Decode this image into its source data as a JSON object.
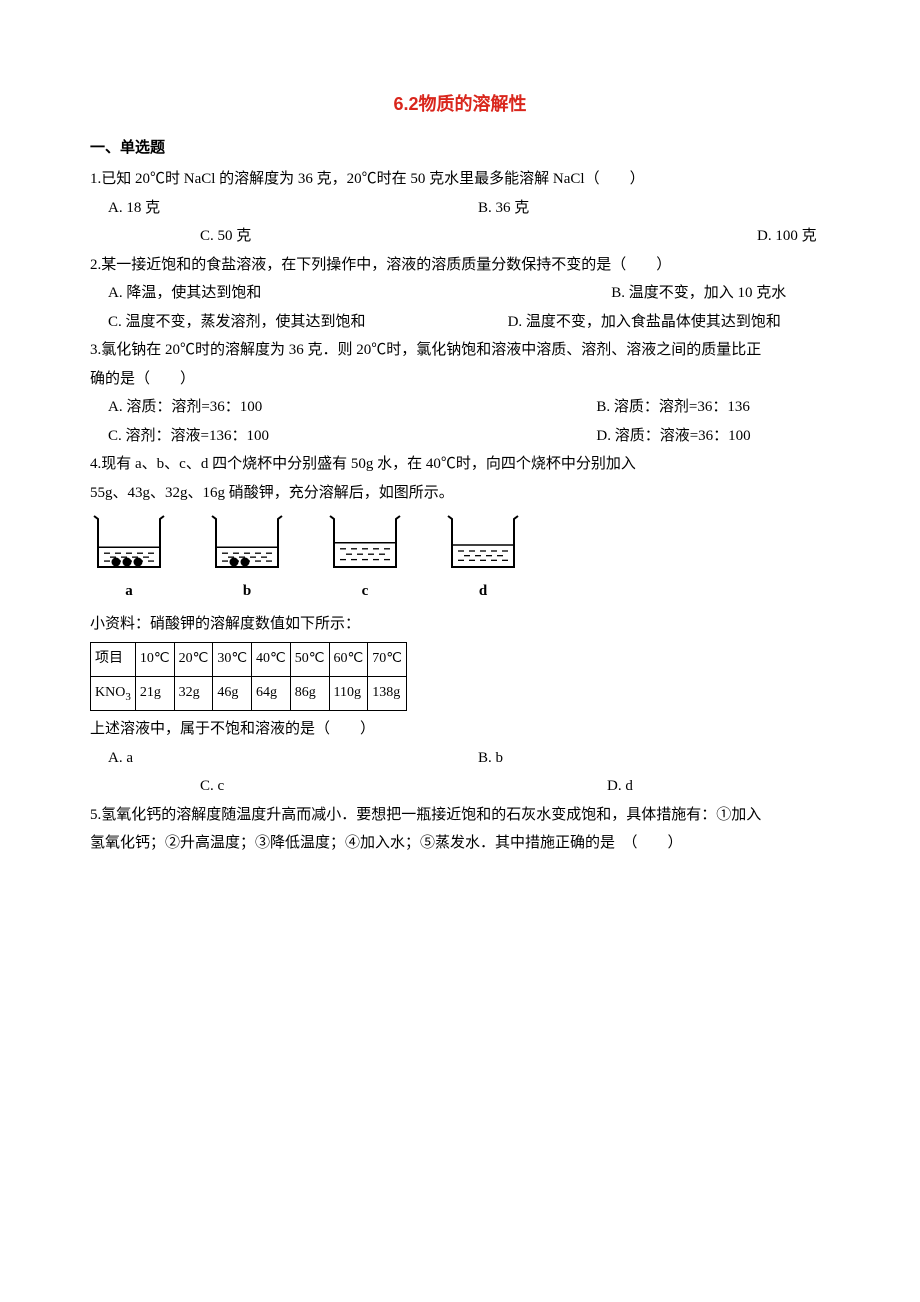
{
  "title_text": "6.2物质的溶解性",
  "title_color": "#d9261c",
  "section1": "一、单选题",
  "q1": {
    "text": "1.已知 20℃时 NaCl 的溶解度为 36 克，20℃时在 50 克水里最多能溶解 NaCl（　　）",
    "A": "A. 18 克",
    "B": "B. 36 克",
    "C": "C. 50 克",
    "D": "D. 100 克"
  },
  "q2": {
    "text": "2.某一接近饱和的食盐溶液，在下列操作中，溶液的溶质质量分数保持不变的是（　　）",
    "A": "A. 降温，使其达到饱和",
    "B": "B. 温度不变，加入 10 克水",
    "C": "C. 温度不变，蒸发溶剂，使其达到饱和",
    "D": "D. 温度不变，加入食盐晶体使其达到饱和"
  },
  "q3": {
    "text1": "3.氯化钠在 20℃时的溶解度为 36 克．则 20℃时，氯化钠饱和溶液中溶质、溶剂、溶液之间的质量比正",
    "text2": "确的是（　　）",
    "A": "A. 溶质：溶剂=36：100",
    "B": "B. 溶质：溶剂=36：136",
    "C": "C. 溶剂：溶液=136：100",
    "D": "D. 溶质：溶液=36：100"
  },
  "q4": {
    "text1": "4.现有 a、b、c、d 四个烧杯中分别盛有 50g 水，在 40℃时，向四个烧杯中分别加入",
    "text2": "55g、43g、32g、16g 硝酸钾，充分溶解后，如图所示。",
    "beakers": [
      {
        "label": "a",
        "balls": 3,
        "water_level": 0.45
      },
      {
        "label": "b",
        "balls": 2,
        "water_level": 0.45
      },
      {
        "label": "c",
        "balls": 0,
        "water_level": 0.55
      },
      {
        "label": "d",
        "balls": 0,
        "water_level": 0.5
      }
    ],
    "note": "小资料：硝酸钾的溶解度数值如下所示：",
    "table": {
      "row1": [
        "项目",
        "10℃",
        "20℃",
        "30℃",
        "40℃",
        "50℃",
        "60℃",
        "70℃"
      ],
      "row2": [
        "KNO₃",
        "21g",
        "32g",
        "46g",
        "64g",
        "86g",
        "110g",
        "138g"
      ]
    },
    "text3": "上述溶液中，属于不饱和溶液的是（　　）",
    "A": "A. a",
    "B": "B. b",
    "C": "C. c",
    "D": "D. d"
  },
  "q5": {
    "text1": "5.氢氧化钙的溶解度随温度升高而减小．要想把一瓶接近饱和的石灰水变成饱和，具体措施有：①加入",
    "text2": "氢氧化钙；②升高温度；③降低温度；④加入水；⑤蒸发水．其中措施正确的是　（　　）"
  },
  "colors": {
    "text": "#000000",
    "bg": "#ffffff",
    "border": "#000000"
  }
}
